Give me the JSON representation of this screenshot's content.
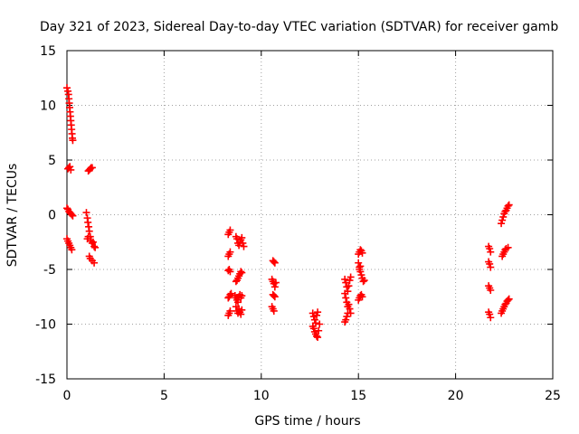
{
  "chart_data": {
    "type": "scatter",
    "title": "Day 321 of 2023, Sidereal Day-to-day VTEC variation (SDTVAR) for receiver gamb",
    "xlabel": "GPS time / hours",
    "ylabel": "SDTVAR / TECUs",
    "xlim": [
      0,
      25
    ],
    "ylim": [
      -15,
      15
    ],
    "x_ticks": [
      0,
      5,
      10,
      15,
      20,
      25
    ],
    "y_ticks": [
      -15,
      -10,
      -5,
      0,
      5,
      10,
      15
    ],
    "x_tick_labels": [
      "0",
      "5",
      "10",
      "15",
      "20",
      "25"
    ],
    "y_tick_labels": [
      "-15",
      "-10",
      "-5",
      "0",
      "5",
      "10",
      "15"
    ],
    "grid": true,
    "marker": "+",
    "series": [
      {
        "name": "SDTVAR",
        "color": "#ff0000",
        "points": [
          [
            0.0,
            11.6
          ],
          [
            0.05,
            11.3
          ],
          [
            0.08,
            11.0
          ],
          [
            0.1,
            10.6
          ],
          [
            0.12,
            10.2
          ],
          [
            0.14,
            9.8
          ],
          [
            0.16,
            9.4
          ],
          [
            0.18,
            9.0
          ],
          [
            0.2,
            8.6
          ],
          [
            0.22,
            8.2
          ],
          [
            0.24,
            7.8
          ],
          [
            0.26,
            7.4
          ],
          [
            0.28,
            7.0
          ],
          [
            0.3,
            6.8
          ],
          [
            0.05,
            4.2
          ],
          [
            0.1,
            4.3
          ],
          [
            0.15,
            4.4
          ],
          [
            0.2,
            4.1
          ],
          [
            0.0,
            0.6
          ],
          [
            0.05,
            0.5
          ],
          [
            0.1,
            0.3
          ],
          [
            0.15,
            0.2
          ],
          [
            0.2,
            0.1
          ],
          [
            0.25,
            0.0
          ],
          [
            0.3,
            -0.1
          ],
          [
            0.0,
            -2.2
          ],
          [
            0.05,
            -2.4
          ],
          [
            0.1,
            -2.6
          ],
          [
            0.15,
            -2.8
          ],
          [
            0.2,
            -3.0
          ],
          [
            0.25,
            -3.2
          ],
          [
            1.1,
            4.0
          ],
          [
            1.15,
            4.1
          ],
          [
            1.2,
            4.2
          ],
          [
            1.25,
            4.3
          ],
          [
            1.3,
            4.3
          ],
          [
            1.0,
            0.2
          ],
          [
            1.05,
            -0.3
          ],
          [
            1.08,
            -0.7
          ],
          [
            1.12,
            -1.1
          ],
          [
            1.15,
            -1.5
          ],
          [
            1.1,
            -2.0
          ],
          [
            1.05,
            -2.2
          ],
          [
            1.2,
            -2.0
          ],
          [
            1.25,
            -2.4
          ],
          [
            1.3,
            -2.6
          ],
          [
            1.35,
            -2.5
          ],
          [
            1.4,
            -2.9
          ],
          [
            1.45,
            -3.0
          ],
          [
            1.15,
            -3.8
          ],
          [
            1.2,
            -4.0
          ],
          [
            1.3,
            -4.2
          ],
          [
            1.4,
            -4.4
          ],
          [
            8.3,
            -1.8
          ],
          [
            8.35,
            -1.6
          ],
          [
            8.4,
            -1.4
          ],
          [
            8.3,
            -3.8
          ],
          [
            8.35,
            -3.6
          ],
          [
            8.4,
            -3.4
          ],
          [
            8.3,
            -5.1
          ],
          [
            8.35,
            -5.0
          ],
          [
            8.4,
            -5.2
          ],
          [
            8.3,
            -7.6
          ],
          [
            8.35,
            -7.5
          ],
          [
            8.4,
            -7.3
          ],
          [
            8.45,
            -7.2
          ],
          [
            8.3,
            -9.2
          ],
          [
            8.35,
            -9.0
          ],
          [
            8.4,
            -8.8
          ],
          [
            8.7,
            -2.0
          ],
          [
            8.75,
            -2.2
          ],
          [
            8.8,
            -2.6
          ],
          [
            8.85,
            -2.8
          ],
          [
            8.9,
            -2.5
          ],
          [
            8.95,
            -2.3
          ],
          [
            9.0,
            -2.1
          ],
          [
            9.05,
            -2.6
          ],
          [
            9.1,
            -2.9
          ],
          [
            8.7,
            -6.1
          ],
          [
            8.75,
            -6.0
          ],
          [
            8.8,
            -5.8
          ],
          [
            8.85,
            -5.6
          ],
          [
            8.9,
            -5.4
          ],
          [
            8.95,
            -5.2
          ],
          [
            9.0,
            -5.3
          ],
          [
            8.65,
            -7.4
          ],
          [
            8.7,
            -7.6
          ],
          [
            8.75,
            -7.8
          ],
          [
            8.8,
            -8.0
          ],
          [
            8.85,
            -7.5
          ],
          [
            8.9,
            -7.3
          ],
          [
            8.95,
            -7.6
          ],
          [
            9.0,
            -7.4
          ],
          [
            8.7,
            -8.4
          ],
          [
            8.75,
            -8.8
          ],
          [
            8.8,
            -9.0
          ],
          [
            8.85,
            -8.6
          ],
          [
            8.9,
            -8.9
          ],
          [
            8.95,
            -9.1
          ],
          [
            9.0,
            -8.7
          ],
          [
            10.6,
            -4.2
          ],
          [
            10.65,
            -4.3
          ],
          [
            10.7,
            -4.4
          ],
          [
            10.55,
            -5.9
          ],
          [
            10.6,
            -6.1
          ],
          [
            10.65,
            -6.3
          ],
          [
            10.7,
            -6.6
          ],
          [
            10.75,
            -6.2
          ],
          [
            10.6,
            -7.3
          ],
          [
            10.65,
            -7.4
          ],
          [
            10.7,
            -7.5
          ],
          [
            10.55,
            -8.4
          ],
          [
            10.6,
            -8.6
          ],
          [
            10.65,
            -8.8
          ],
          [
            12.65,
            -9.0
          ],
          [
            12.7,
            -9.3
          ],
          [
            12.75,
            -9.6
          ],
          [
            12.8,
            -9.9
          ],
          [
            12.85,
            -9.2
          ],
          [
            12.9,
            -8.9
          ],
          [
            12.65,
            -10.2
          ],
          [
            12.7,
            -10.4
          ],
          [
            12.75,
            -10.7
          ],
          [
            12.8,
            -10.9
          ],
          [
            12.85,
            -11.1
          ],
          [
            12.9,
            -11.2
          ],
          [
            12.95,
            -10.6
          ],
          [
            13.0,
            -10.0
          ],
          [
            14.3,
            -5.9
          ],
          [
            14.35,
            -6.2
          ],
          [
            14.4,
            -6.6
          ],
          [
            14.45,
            -7.0
          ],
          [
            14.5,
            -6.5
          ],
          [
            14.55,
            -6.0
          ],
          [
            14.6,
            -5.7
          ],
          [
            14.3,
            -7.2
          ],
          [
            14.35,
            -7.6
          ],
          [
            14.4,
            -8.0
          ],
          [
            14.45,
            -8.4
          ],
          [
            14.5,
            -8.2
          ],
          [
            14.55,
            -8.6
          ],
          [
            14.6,
            -9.0
          ],
          [
            14.3,
            -9.8
          ],
          [
            14.35,
            -9.6
          ],
          [
            14.4,
            -9.3
          ],
          [
            14.45,
            -9.0
          ],
          [
            15.0,
            -3.6
          ],
          [
            15.05,
            -3.4
          ],
          [
            15.1,
            -3.2
          ],
          [
            15.15,
            -3.3
          ],
          [
            15.2,
            -3.5
          ],
          [
            15.0,
            -4.4
          ],
          [
            15.05,
            -4.8
          ],
          [
            15.1,
            -5.2
          ],
          [
            15.15,
            -5.5
          ],
          [
            15.2,
            -5.8
          ],
          [
            15.25,
            -6.1
          ],
          [
            15.3,
            -6.0
          ],
          [
            15.05,
            -5.0
          ],
          [
            15.1,
            -4.7
          ],
          [
            15.0,
            -7.8
          ],
          [
            15.05,
            -7.6
          ],
          [
            15.1,
            -7.4
          ],
          [
            15.15,
            -7.3
          ],
          [
            15.2,
            -7.5
          ],
          [
            21.7,
            -2.9
          ],
          [
            21.75,
            -3.1
          ],
          [
            21.8,
            -3.4
          ],
          [
            21.7,
            -4.3
          ],
          [
            21.75,
            -4.5
          ],
          [
            21.8,
            -4.8
          ],
          [
            21.7,
            -6.5
          ],
          [
            21.75,
            -6.7
          ],
          [
            21.8,
            -6.9
          ],
          [
            21.7,
            -8.9
          ],
          [
            21.75,
            -9.1
          ],
          [
            21.8,
            -9.4
          ],
          [
            22.35,
            -0.8
          ],
          [
            22.4,
            -0.5
          ],
          [
            22.45,
            -0.2
          ],
          [
            22.5,
            0.1
          ],
          [
            22.55,
            0.3
          ],
          [
            22.6,
            0.4
          ],
          [
            22.65,
            0.6
          ],
          [
            22.7,
            0.8
          ],
          [
            22.75,
            0.9
          ],
          [
            22.4,
            -3.8
          ],
          [
            22.45,
            -3.6
          ],
          [
            22.5,
            -3.4
          ],
          [
            22.55,
            -3.2
          ],
          [
            22.6,
            -3.1
          ],
          [
            22.7,
            -3.0
          ],
          [
            22.35,
            -9.0
          ],
          [
            22.4,
            -8.8
          ],
          [
            22.45,
            -8.6
          ],
          [
            22.5,
            -8.4
          ],
          [
            22.55,
            -8.2
          ],
          [
            22.6,
            -8.1
          ],
          [
            22.65,
            -7.9
          ],
          [
            22.7,
            -7.8
          ],
          [
            22.75,
            -7.7
          ]
        ]
      }
    ]
  }
}
